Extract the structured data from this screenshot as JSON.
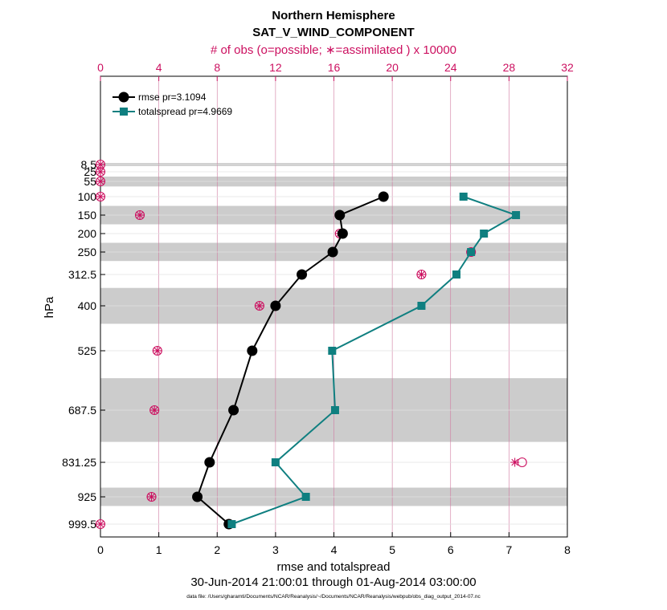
{
  "chart_data": {
    "type": "line",
    "title": "Northern Hemisphere",
    "subtitle": "SAT_V_WIND_COMPONENT",
    "top_axis_label": "# of obs (o=possible; ∗=assimilated ) x 10000",
    "xlabel": "rmse and totalspread",
    "ylabel": "hPa",
    "date_range": "30-Jun-2014 21:00:01 through 01-Aug-2014 03:00:00",
    "footnote": "data file: /Users/gharamti/Documents/NCAR/Reanalysis/~/Documents/NCAR/Reanalysis/webpub/obs_diag_output_2014-07.nc",
    "xlim": [
      0,
      8
    ],
    "x_ticks": [
      "0",
      "1",
      "2",
      "3",
      "4",
      "5",
      "6",
      "7",
      "8"
    ],
    "top_xlim": [
      0,
      32
    ],
    "top_ticks": [
      "0",
      "4",
      "8",
      "12",
      "16",
      "20",
      "24",
      "28",
      "32"
    ],
    "levels": [
      8.5,
      25,
      55,
      100,
      150,
      200,
      250,
      312.5,
      400,
      525,
      687.5,
      831.25,
      925,
      999.5
    ],
    "level_labels": [
      "8.5",
      "25",
      "55",
      "100",
      "150",
      "200",
      "250",
      "312.5",
      "400",
      "525",
      "687.5",
      "831.25",
      "925",
      "999.5"
    ],
    "shaded_layers": [
      [
        5,
        12
      ],
      [
        40,
        70
      ],
      [
        125,
        175
      ],
      [
        225,
        275
      ],
      [
        350,
        450
      ],
      [
        600,
        775
      ],
      [
        900,
        950
      ]
    ],
    "series": [
      {
        "name": "rmse",
        "legend": "rmse pr=3.1094",
        "color": "#000000",
        "marker": "circle",
        "levels": [
          100,
          150,
          200,
          250,
          312.5,
          400,
          525,
          687.5,
          831.25,
          925,
          999.5
        ],
        "values": [
          4.85,
          4.1,
          4.15,
          3.98,
          3.45,
          3.0,
          2.6,
          2.28,
          1.87,
          1.66,
          2.2
        ]
      },
      {
        "name": "totalspread",
        "legend": "totalspread pr=4.9669",
        "color": "#0f7f80",
        "marker": "square",
        "levels": [
          100,
          150,
          200,
          250,
          312.5,
          400,
          525,
          687.5,
          831.25,
          925,
          999.5
        ],
        "values": [
          6.22,
          7.12,
          6.57,
          6.35,
          6.1,
          5.5,
          3.97,
          4.02,
          3.0,
          3.52,
          2.25
        ]
      }
    ],
    "obs_counts": {
      "scale": "x 10000",
      "possible_levels": [
        8.5,
        25,
        55,
        100,
        150,
        200,
        250,
        312.5,
        400,
        525,
        687.5,
        831.25,
        925,
        999.5
      ],
      "possible": [
        0,
        0,
        0,
        0,
        2.7,
        16.4,
        25.4,
        22.0,
        10.9,
        3.9,
        3.7,
        28.9,
        3.5,
        0
      ],
      "assimilated": [
        0,
        0,
        0,
        0,
        2.7,
        16.4,
        25.4,
        22.0,
        10.9,
        3.9,
        3.7,
        28.4,
        3.5,
        0
      ]
    }
  }
}
